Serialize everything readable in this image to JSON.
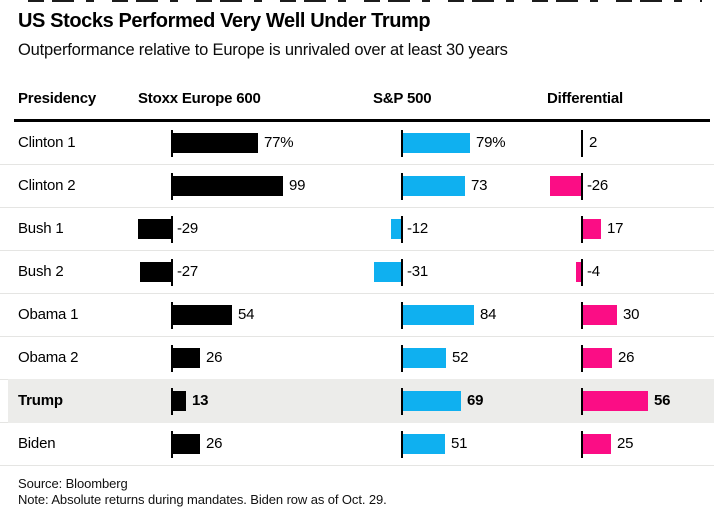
{
  "chart_data": {
    "type": "bar",
    "title": "US Stocks Performed Very Well Under Trump",
    "subtitle": "Outperformance relative to Europe is unrivaled over at least 30 years",
    "columns": [
      "Presidency",
      "Stoxx Europe 600",
      "S&P 500",
      "Differential"
    ],
    "categories": [
      "Clinton 1",
      "Clinton 2",
      "Bush 1",
      "Bush 2",
      "Obama 1",
      "Obama 2",
      "Trump",
      "Biden"
    ],
    "series": [
      {
        "name": "Stoxx Europe 600",
        "color": "#000000",
        "values": [
          77,
          99,
          -29,
          -27,
          54,
          26,
          13,
          26
        ],
        "labels": [
          "77%",
          "99",
          "-29",
          "-27",
          "54",
          "26",
          "13",
          "26"
        ]
      },
      {
        "name": "S&P 500",
        "color": "#0fb0f0",
        "values": [
          79,
          73,
          -12,
          -31,
          84,
          52,
          69,
          51
        ],
        "labels": [
          "79%",
          "73",
          "-12",
          "-31",
          "84",
          "52",
          "69",
          "51"
        ]
      },
      {
        "name": "Differential",
        "color": "#fb0d85",
        "values": [
          2,
          -26,
          17,
          -4,
          30,
          26,
          56,
          25
        ],
        "labels": [
          "2",
          "-26",
          "17",
          "-4",
          "30",
          "26",
          "56",
          "25"
        ]
      }
    ],
    "highlight_row": "Trump",
    "grid": "row-separators",
    "legend_position": "none",
    "source": "Source: Bloomberg",
    "note": "Note: Absolute returns during mandates. Biden row as of Oct. 29.",
    "colors": {
      "highlight_band": "#ececea",
      "rule": "#000000",
      "separator": "#e5e5e3"
    }
  }
}
